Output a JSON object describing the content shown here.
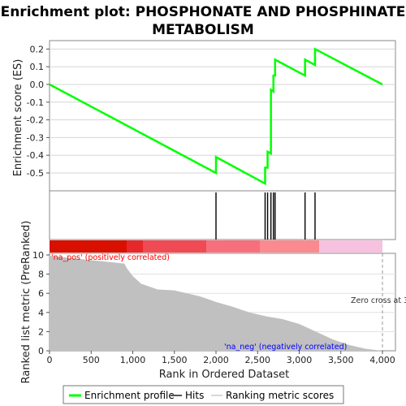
{
  "title_line1": "Enrichment plot: PHOSPHONATE AND PHOSPHINATE",
  "title_line2": "METABOLISM",
  "colors": {
    "es_line": "#00ff00",
    "hits": "#000000",
    "metric_fill": "#c0c0c0",
    "pos_label": "#ff0000",
    "neg_label": "#0000ff",
    "zero_line": "#999999"
  },
  "chart_data": [
    {
      "type": "line",
      "name": "enrichment-score",
      "ylabel": "Enrichment score (ES)",
      "ylim": [
        -0.6,
        0.22
      ],
      "xlim": [
        0,
        4100
      ],
      "yticks": [
        "0.2",
        "0.1",
        "0.0",
        "-0.1",
        "-0.2",
        "-0.3",
        "-0.4",
        "-0.5"
      ],
      "grid": true,
      "series": [
        {
          "name": "Enrichment profile",
          "x": [
            0,
            2000,
            2000,
            2590,
            2590,
            2620,
            2620,
            2660,
            2660,
            2690,
            2690,
            2710,
            2710,
            3070,
            3070,
            3190,
            3190,
            4000
          ],
          "y": [
            0.0,
            -0.5,
            -0.41,
            -0.56,
            -0.47,
            -0.47,
            -0.38,
            -0.39,
            -0.03,
            -0.04,
            0.05,
            0.05,
            0.14,
            0.05,
            0.14,
            0.11,
            0.2,
            0.0
          ]
        }
      ]
    },
    {
      "type": "scatter",
      "name": "hits",
      "x": [
        2000,
        2590,
        2620,
        2660,
        2690,
        2710,
        3070,
        3190
      ]
    },
    {
      "type": "area",
      "name": "ranked-list-metric",
      "xlabel": "Rank in Ordered Dataset",
      "ylabel": "Ranked list metric (PreRanked)",
      "ylim": [
        0,
        10
      ],
      "yticks": [
        "0",
        "2",
        "4",
        "6",
        "8",
        "10"
      ],
      "xticks": [
        "0",
        "500",
        "1,000",
        "1,500",
        "2,000",
        "2,500",
        "3,000",
        "3,500",
        "4,000"
      ],
      "x": [
        0,
        900,
        930,
        1000,
        1100,
        1300,
        1500,
        1800,
        2000,
        2200,
        2400,
        2600,
        2800,
        3000,
        3200,
        3400,
        3600,
        3800,
        4000
      ],
      "values": [
        9.9,
        9.1,
        8.6,
        7.8,
        7.0,
        6.4,
        6.3,
        5.7,
        5.1,
        4.6,
        4.0,
        3.6,
        3.3,
        2.8,
        2.0,
        1.2,
        0.6,
        0.2,
        0.0
      ],
      "annotations": {
        "pos": "'na_pos' (positively correlated)",
        "neg": "'na_neg' (negatively correlated)",
        "zero": "Zero cross at 3"
      }
    }
  ],
  "legend": {
    "items": [
      "Enrichment profile",
      "Hits",
      "Ranking metric scores"
    ]
  }
}
